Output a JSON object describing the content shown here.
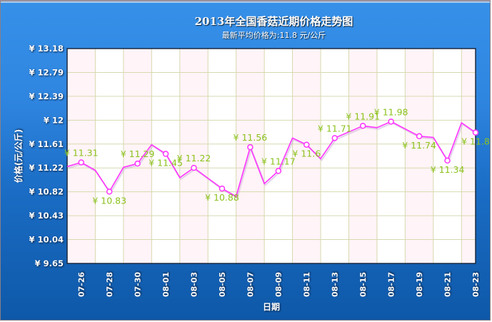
{
  "header": {
    "title": "2013年全国香菇近期价格走势图",
    "subtitle": "最新平均价格为:11.8 元/公斤"
  },
  "axes": {
    "ylabel": "价格(元/公斤)",
    "xlabel": "日期"
  },
  "colors": {
    "line": "#ff33ff",
    "label": "#8bc21c",
    "background_top": "#3690e8",
    "background_bottom": "#0e58a8",
    "grid": "#d7d9b0"
  },
  "chart_data": {
    "type": "line",
    "title": "2013年全国香菇近期价格走势图",
    "subtitle": "最新平均价格为:11.8 元/公斤",
    "xlabel": "日期",
    "ylabel": "价格(元/公斤)",
    "ylim": [
      9.65,
      13.18
    ],
    "yticks": [
      "¥ 9.65",
      "¥ 10.04",
      "¥ 10.43",
      "¥ 10.82",
      "¥ 11.22",
      "¥ 11.61",
      "¥ 12",
      "¥ 12.39",
      "¥ 12.79",
      "¥ 13.18"
    ],
    "xticks": [
      "07-26",
      "07-28",
      "07-30",
      "08-01",
      "08-03",
      "08-05",
      "08-07",
      "08-09",
      "08-11",
      "08-13",
      "08-15",
      "08-17",
      "08-19",
      "08-21",
      "08-23"
    ],
    "grid": true,
    "legend": null,
    "x": [
      "07-25",
      "07-26",
      "07-27",
      "07-28",
      "07-29",
      "07-30",
      "07-31",
      "08-01",
      "08-02",
      "08-03",
      "08-04",
      "08-05",
      "08-06",
      "08-07",
      "08-08",
      "08-09",
      "08-10",
      "08-11",
      "08-12",
      "08-13",
      "08-14",
      "08-15",
      "08-16",
      "08-17",
      "08-18",
      "08-19",
      "08-20",
      "08-21",
      "08-22",
      "08-23"
    ],
    "series": [
      {
        "name": "价格",
        "values": [
          11.24,
          11.31,
          11.18,
          10.83,
          11.23,
          11.29,
          11.6,
          11.45,
          11.06,
          11.22,
          11.05,
          10.88,
          10.75,
          11.56,
          10.96,
          11.17,
          11.71,
          11.6,
          11.37,
          11.71,
          11.81,
          11.91,
          11.88,
          11.98,
          11.86,
          11.74,
          11.72,
          11.34,
          11.96,
          11.8
        ],
        "labeled_points": [
          {
            "x": "07-26",
            "label": "¥ 11.31",
            "pos": "above"
          },
          {
            "x": "07-28",
            "label": "¥ 10.83",
            "pos": "below"
          },
          {
            "x": "07-30",
            "label": "¥ 11.29",
            "pos": "above"
          },
          {
            "x": "08-01",
            "label": "¥ 11.45",
            "pos": "below"
          },
          {
            "x": "08-03",
            "label": "¥ 11.22",
            "pos": "above"
          },
          {
            "x": "08-05",
            "label": "¥ 10.88",
            "pos": "below"
          },
          {
            "x": "08-07",
            "label": "¥ 11.56",
            "pos": "above"
          },
          {
            "x": "08-09",
            "label": "¥ 11.17",
            "pos": "above"
          },
          {
            "x": "08-11",
            "label": "¥ 11.6",
            "pos": "below"
          },
          {
            "x": "08-13",
            "label": "¥ 11.71",
            "pos": "above"
          },
          {
            "x": "08-15",
            "label": "¥ 11.91",
            "pos": "above"
          },
          {
            "x": "08-17",
            "label": "¥ 11.98",
            "pos": "above"
          },
          {
            "x": "08-19",
            "label": "¥ 11.74",
            "pos": "below"
          },
          {
            "x": "08-21",
            "label": "¥ 11.34",
            "pos": "below"
          },
          {
            "x": "08-23",
            "label": "¥ 11.8",
            "pos": "below"
          }
        ]
      }
    ]
  }
}
